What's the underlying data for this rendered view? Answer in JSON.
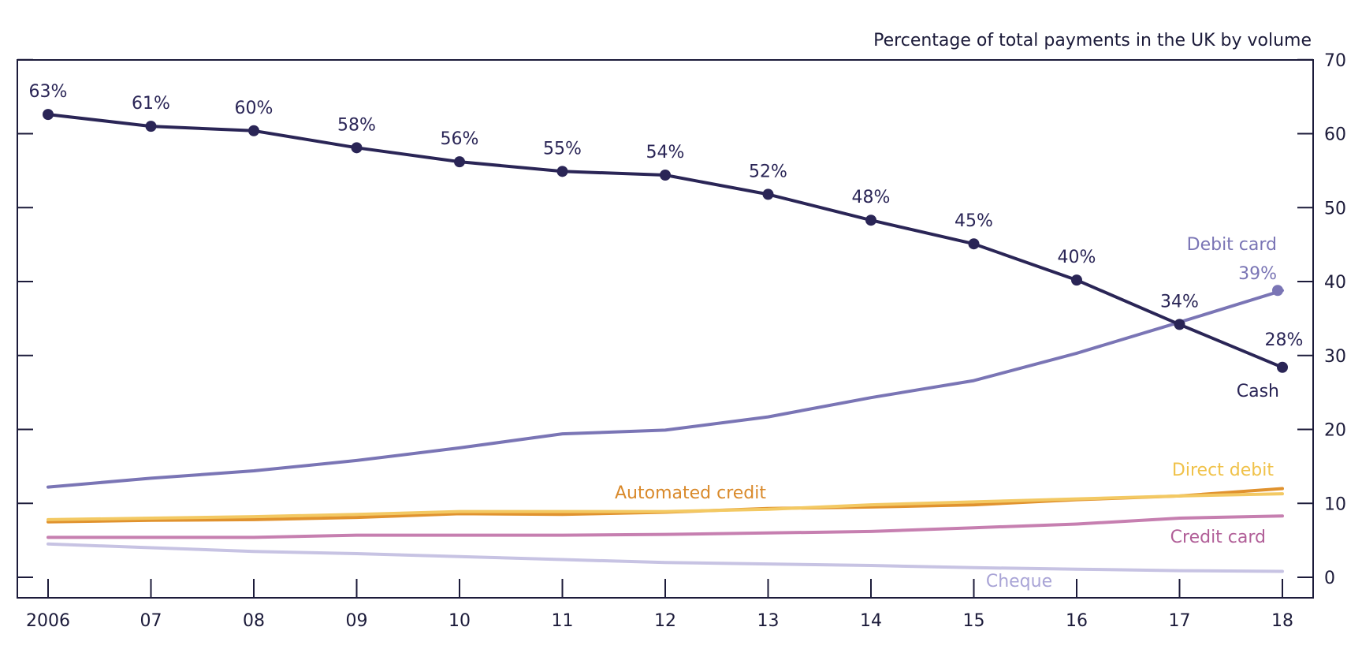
{
  "chart_data": {
    "type": "line",
    "title": "",
    "unit_label": "Percentage of total payments in the UK by volume",
    "xlabel": "",
    "ylabel": "",
    "x": [
      "2006",
      "07",
      "08",
      "09",
      "10",
      "11",
      "12",
      "13",
      "14",
      "15",
      "16",
      "17",
      "18"
    ],
    "ylim": [
      0,
      70
    ],
    "yticks": [
      0,
      10,
      20,
      30,
      40,
      50,
      60,
      70
    ],
    "y_axis_side": "right",
    "grid": false,
    "series": [
      {
        "name": "Cash",
        "color": "#2a2556",
        "markers": true,
        "values": [
          62.6,
          61.0,
          60.4,
          58.1,
          56.2,
          54.9,
          54.4,
          51.8,
          48.3,
          45.1,
          40.2,
          34.2,
          28.4
        ],
        "labels": [
          "63%",
          "61%",
          "60%",
          "58%",
          "56%",
          "55%",
          "54%",
          "52%",
          "48%",
          "45%",
          "40%",
          "34%",
          "28%"
        ]
      },
      {
        "name": "Debit card",
        "color": "#7a75b5",
        "markers": false,
        "end_marker": true,
        "end_label": "39%",
        "values": [
          12.2,
          13.4,
          14.4,
          15.8,
          17.5,
          19.4,
          19.9,
          21.7,
          24.3,
          26.6,
          30.3,
          34.5,
          38.8
        ]
      },
      {
        "name": "Direct debit",
        "color": "#f3c963",
        "markers": false,
        "values": [
          7.8,
          8.0,
          8.2,
          8.5,
          8.9,
          8.9,
          8.9,
          9.2,
          9.8,
          10.2,
          10.6,
          11.0,
          11.3
        ]
      },
      {
        "name": "Automated credit",
        "color": "#e0922e",
        "markers": false,
        "values": [
          7.5,
          7.7,
          7.8,
          8.1,
          8.6,
          8.5,
          8.8,
          9.3,
          9.5,
          9.8,
          10.5,
          11.0,
          12.0
        ]
      },
      {
        "name": "Credit card",
        "color": "#c67fb0",
        "markers": false,
        "values": [
          5.4,
          5.4,
          5.4,
          5.7,
          5.7,
          5.7,
          5.8,
          6.0,
          6.2,
          6.7,
          7.2,
          8.0,
          8.3
        ]
      },
      {
        "name": "Cheque",
        "color": "#c7c3e3",
        "markers": false,
        "values": [
          4.5,
          4.0,
          3.5,
          3.2,
          2.8,
          2.4,
          2.0,
          1.8,
          1.6,
          1.3,
          1.1,
          0.9,
          0.8
        ]
      }
    ]
  }
}
